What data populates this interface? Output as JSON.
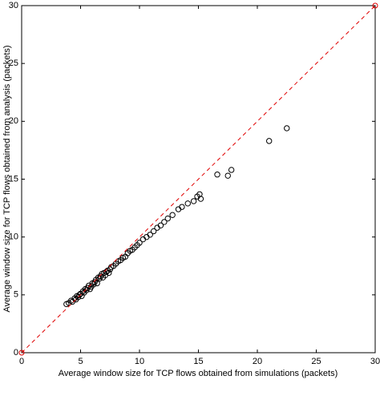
{
  "chart_data": {
    "type": "scatter",
    "x_label": "Average window size for TCP flows obtained from simulations (packets)",
    "y_label": "Average window size for TCP flows obtained from analysis (packets)",
    "xlim": [
      0,
      30
    ],
    "ylim": [
      0,
      30
    ],
    "xticks": [
      0,
      5,
      10,
      15,
      20,
      25,
      30
    ],
    "yticks": [
      0,
      5,
      10,
      15,
      20,
      25,
      30
    ],
    "series": [
      {
        "type": "scatter",
        "color": "#000000",
        "x": [
          3.8,
          4.0,
          4.2,
          4.3,
          4.5,
          4.6,
          4.7,
          4.8,
          4.9,
          5.0,
          5.1,
          5.2,
          5.3,
          5.4,
          5.5,
          5.6,
          5.7,
          5.8,
          5.9,
          6.0,
          6.1,
          6.2,
          6.3,
          6.4,
          6.5,
          6.6,
          6.7,
          6.8,
          6.9,
          7.0,
          7.1,
          7.2,
          7.3,
          7.4,
          7.5,
          7.6,
          7.8,
          8.0,
          8.2,
          8.4,
          8.6,
          8.8,
          9.0,
          9.2,
          9.4,
          9.6,
          9.8,
          10.0,
          10.3,
          10.6,
          10.9,
          11.2,
          11.5,
          11.8,
          12.1,
          12.4,
          12.8,
          13.3,
          13.6,
          14.1,
          14.6,
          14.9,
          15.1,
          15.2,
          16.6,
          17.5,
          17.8,
          21.0,
          22.5
        ],
        "values": [
          4.2,
          4.3,
          4.5,
          4.4,
          4.7,
          4.6,
          4.9,
          4.8,
          5.0,
          5.1,
          4.9,
          5.3,
          5.2,
          5.5,
          5.4,
          5.6,
          5.8,
          5.5,
          5.7,
          6.0,
          5.9,
          6.1,
          6.3,
          6.0,
          6.5,
          6.4,
          6.6,
          6.8,
          6.5,
          6.9,
          6.7,
          7.0,
          7.1,
          6.9,
          7.2,
          7.4,
          7.5,
          7.7,
          7.9,
          8.0,
          8.2,
          8.3,
          8.6,
          8.8,
          8.9,
          9.1,
          9.3,
          9.5,
          9.8,
          10.0,
          10.2,
          10.5,
          10.8,
          11.0,
          11.3,
          11.6,
          11.9,
          12.4,
          12.6,
          12.9,
          13.1,
          13.5,
          13.7,
          13.3,
          15.4,
          15.3,
          15.8,
          18.3,
          19.4
        ]
      },
      {
        "type": "line",
        "color": "#e00000",
        "dashed": true,
        "x": [
          0,
          30
        ],
        "values": [
          0,
          30
        ]
      }
    ]
  }
}
